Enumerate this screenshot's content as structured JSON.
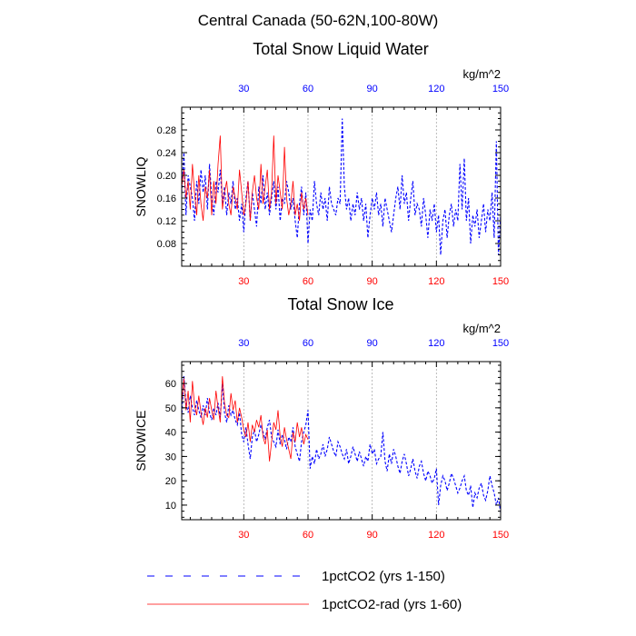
{
  "page_title": "Central Canada (50-62N,100-80W)",
  "colors": {
    "co2": "#0000ff",
    "rad": "#ff0000",
    "grid": "#aaaaaa",
    "axis": "#000000"
  },
  "legend": [
    {
      "label": "1pctCO2 (yrs 1-150)",
      "style": "dashed",
      "color": "#0000ff"
    },
    {
      "label": "1pctCO2-rad (yrs 1-60)",
      "style": "solid",
      "color": "#ff0000"
    }
  ],
  "chart_data": [
    {
      "type": "line",
      "title": "Total Snow Liquid Water",
      "ylabel": "SNOWLIQ",
      "units": "kg/m^2",
      "xlim": [
        1,
        150
      ],
      "ylim": [
        0.04,
        0.32
      ],
      "xticks": [
        30,
        60,
        90,
        120,
        150
      ],
      "yticks": [
        0.08,
        0.12,
        0.16,
        0.2,
        0.24,
        0.28
      ],
      "ytick_labels": [
        "0.08",
        "0.12",
        "0.16",
        "0.20",
        "0.24",
        "0.28"
      ],
      "grid_x": true,
      "series": [
        {
          "name": "1pctCO2 (yrs 1-150)",
          "x_start": 1,
          "values": [
            0.17,
            0.24,
            0.13,
            0.2,
            0.18,
            0.16,
            0.12,
            0.19,
            0.15,
            0.21,
            0.17,
            0.2,
            0.14,
            0.22,
            0.16,
            0.13,
            0.19,
            0.17,
            0.21,
            0.15,
            0.18,
            0.13,
            0.17,
            0.15,
            0.19,
            0.14,
            0.16,
            0.12,
            0.15,
            0.1,
            0.16,
            0.19,
            0.12,
            0.17,
            0.14,
            0.11,
            0.18,
            0.15,
            0.2,
            0.14,
            0.17,
            0.13,
            0.16,
            0.19,
            0.14,
            0.18,
            0.12,
            0.16,
            0.15,
            0.19,
            0.17,
            0.14,
            0.16,
            0.12,
            0.09,
            0.15,
            0.18,
            0.13,
            0.17,
            0.08,
            0.14,
            0.12,
            0.19,
            0.15,
            0.13,
            0.17,
            0.14,
            0.16,
            0.12,
            0.18,
            0.15,
            0.14,
            0.13,
            0.16,
            0.15,
            0.3,
            0.18,
            0.14,
            0.16,
            0.12,
            0.15,
            0.13,
            0.17,
            0.14,
            0.16,
            0.12,
            0.15,
            0.09,
            0.13,
            0.16,
            0.14,
            0.17,
            0.13,
            0.15,
            0.11,
            0.16,
            0.14,
            0.12,
            0.1,
            0.13,
            0.16,
            0.18,
            0.14,
            0.2,
            0.15,
            0.17,
            0.12,
            0.16,
            0.19,
            0.13,
            0.15,
            0.14,
            0.11,
            0.16,
            0.13,
            0.09,
            0.14,
            0.12,
            0.15,
            0.1,
            0.13,
            0.06,
            0.12,
            0.14,
            0.09,
            0.13,
            0.15,
            0.11,
            0.14,
            0.12,
            0.22,
            0.14,
            0.23,
            0.12,
            0.16,
            0.08,
            0.13,
            0.11,
            0.14,
            0.09,
            0.12,
            0.15,
            0.1,
            0.14,
            0.12,
            0.17,
            0.09,
            0.26,
            0.06,
            0.13
          ]
        },
        {
          "name": "1pctCO2-rad (yrs 1-60)",
          "x_start": 1,
          "values": [
            0.18,
            0.21,
            0.16,
            0.19,
            0.14,
            0.22,
            0.17,
            0.13,
            0.2,
            0.15,
            0.12,
            0.18,
            0.16,
            0.21,
            0.13,
            0.19,
            0.15,
            0.22,
            0.27,
            0.14,
            0.17,
            0.19,
            0.15,
            0.13,
            0.18,
            0.16,
            0.14,
            0.21,
            0.17,
            0.13,
            0.15,
            0.19,
            0.12,
            0.17,
            0.2,
            0.16,
            0.14,
            0.22,
            0.15,
            0.18,
            0.21,
            0.14,
            0.17,
            0.27,
            0.15,
            0.2,
            0.17,
            0.14,
            0.25,
            0.16,
            0.13,
            0.15,
            0.19,
            0.13,
            0.15,
            0.12,
            0.17,
            0.14,
            0.16,
            0.13
          ]
        }
      ]
    },
    {
      "type": "line",
      "title": "Total Snow Ice",
      "ylabel": "SNOWICE",
      "units": "kg/m^2",
      "xlim": [
        1,
        150
      ],
      "ylim": [
        4,
        69
      ],
      "xticks": [
        30,
        60,
        90,
        120,
        150
      ],
      "yticks": [
        10,
        20,
        30,
        40,
        50,
        60
      ],
      "ytick_labels": [
        "10",
        "20",
        "30",
        "40",
        "50",
        "60"
      ],
      "grid_x": true,
      "series": [
        {
          "name": "1pctCO2 (yrs 1-150)",
          "x_start": 1,
          "values": [
            46,
            63,
            52,
            48,
            55,
            50,
            47,
            53,
            49,
            46,
            51,
            47,
            54,
            48,
            45,
            50,
            47,
            52,
            46,
            60,
            48,
            44,
            51,
            47,
            49,
            45,
            43,
            48,
            39,
            36,
            42,
            35,
            29,
            38,
            41,
            36,
            39,
            43,
            40,
            37,
            42,
            45,
            38,
            36,
            34,
            41,
            35,
            39,
            37,
            33,
            38,
            36,
            42,
            34,
            31,
            28,
            36,
            40,
            43,
            49,
            25,
            30,
            27,
            33,
            29,
            31,
            35,
            30,
            33,
            38,
            35,
            32,
            30,
            36,
            34,
            31,
            29,
            33,
            27,
            30,
            34,
            31,
            28,
            32,
            29,
            26,
            30,
            28,
            35,
            31,
            33,
            27,
            29,
            30,
            40,
            28,
            24,
            31,
            27,
            33,
            30,
            26,
            23,
            28,
            31,
            27,
            22,
            25,
            29,
            24,
            21,
            26,
            28,
            23,
            20,
            24,
            22,
            19,
            21,
            25,
            10,
            18,
            22,
            20,
            16,
            19,
            23,
            21,
            18,
            15,
            17,
            20,
            22,
            16,
            14,
            18,
            9,
            15,
            13,
            17,
            19,
            14,
            12,
            16,
            22,
            18,
            15,
            10,
            13,
            7
          ]
        },
        {
          "name": "1pctCO2-rad (yrs 1-60)",
          "x_start": 1,
          "values": [
            52,
            62,
            49,
            57,
            44,
            61,
            51,
            47,
            55,
            48,
            43,
            50,
            46,
            54,
            49,
            45,
            57,
            50,
            44,
            63,
            52,
            47,
            46,
            56,
            49,
            53,
            44,
            50,
            46,
            41,
            38,
            44,
            36,
            43,
            40,
            45,
            42,
            47,
            38,
            35,
            41,
            28,
            36,
            44,
            41,
            49,
            38,
            34,
            42,
            37,
            33,
            29,
            40,
            36,
            44,
            38,
            42,
            35,
            39,
            37
          ]
        }
      ]
    }
  ]
}
